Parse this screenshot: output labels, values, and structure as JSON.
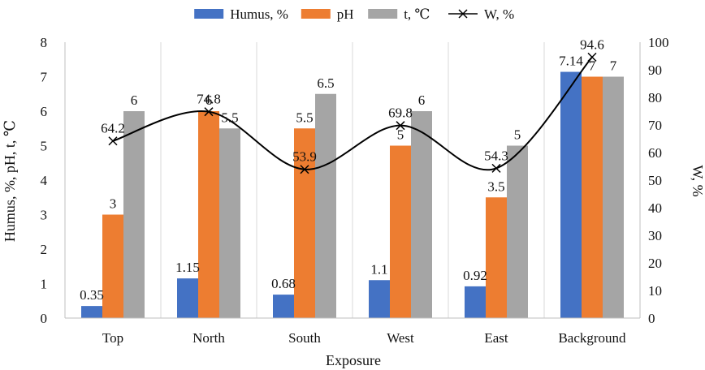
{
  "chart_data": {
    "type": "bar",
    "title": "",
    "xlabel": "Exposure",
    "ylabel": "Humus, %, pH, t, ℃",
    "y2label": "W, %",
    "ylim": [
      0,
      8
    ],
    "y2lim": [
      0,
      100
    ],
    "yticks": [
      "0",
      "1",
      "2",
      "3",
      "4",
      "5",
      "6",
      "7",
      "8"
    ],
    "y2ticks": [
      "0",
      "10",
      "20",
      "30",
      "40",
      "50",
      "60",
      "70",
      "80",
      "90",
      "100"
    ],
    "categories": [
      "Top",
      "North",
      "South",
      "West",
      "East",
      "Background"
    ],
    "legend_position": "top",
    "series": [
      {
        "name": "Humus, %",
        "kind": "bar",
        "axis": "left",
        "color": "#4472c4",
        "values": [
          0.35,
          1.15,
          0.68,
          1.1,
          0.92,
          7.14
        ],
        "labels": [
          "0.35",
          "1.15",
          "0.68",
          "1.1",
          "0.92",
          "7.14"
        ]
      },
      {
        "name": "pH",
        "kind": "bar",
        "axis": "left",
        "color": "#ed7d31",
        "values": [
          3,
          6,
          5.5,
          5,
          3.5,
          7
        ],
        "labels": [
          "3",
          "6",
          "5.5",
          "5",
          "3.5",
          "7"
        ]
      },
      {
        "name": "t, ℃",
        "kind": "bar",
        "axis": "left",
        "color": "#a5a5a5",
        "values": [
          6,
          5.5,
          6.5,
          6,
          5,
          7
        ],
        "labels": [
          "6",
          "5.5",
          "6.5",
          "6",
          "5",
          "7"
        ]
      },
      {
        "name": "W, %",
        "kind": "line",
        "axis": "right",
        "color": "#000000",
        "marker": "x",
        "values": [
          64.2,
          74.8,
          53.9,
          69.8,
          54.3,
          94.6
        ],
        "labels": [
          "64.2",
          "74.8",
          "53.9",
          "69.8",
          "54.3",
          "94.6"
        ]
      }
    ]
  }
}
